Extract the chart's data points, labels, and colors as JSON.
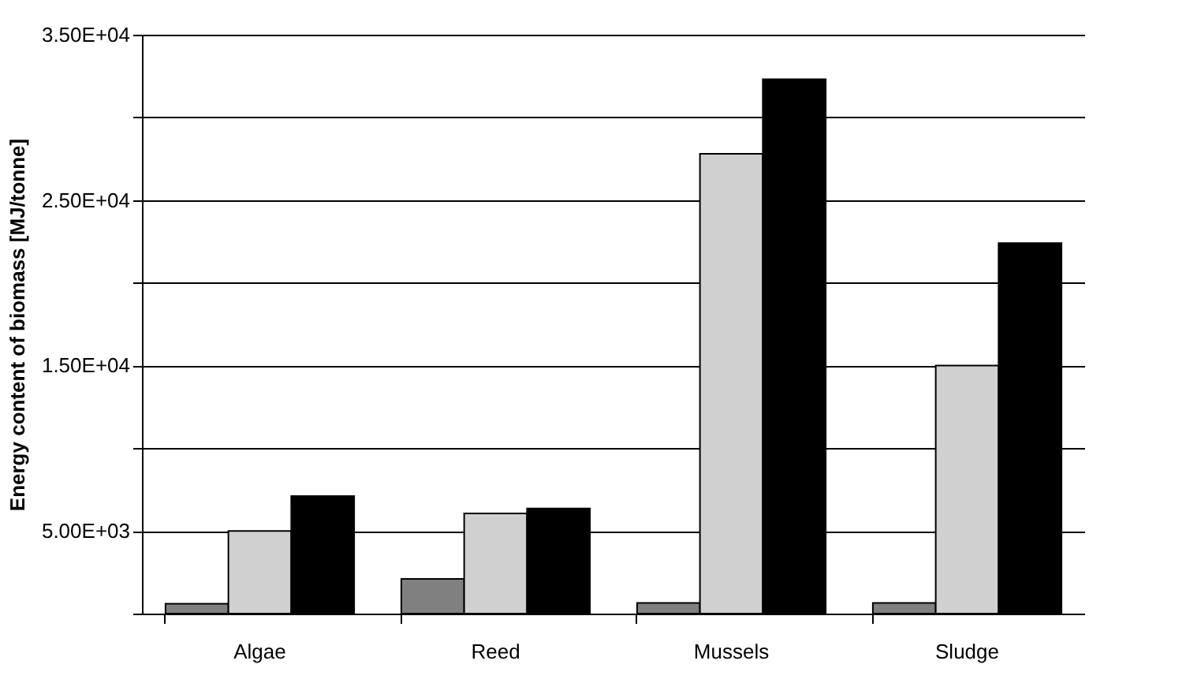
{
  "chart_data": {
    "type": "bar",
    "ylabel": "Energy content of biomass [MJ/tonne]",
    "categories": [
      "Algae",
      "Reed",
      "Mussels",
      "Sludge"
    ],
    "series": [
      {
        "color": "#808080",
        "values": [
          600,
          2100,
          640,
          640
        ]
      },
      {
        "color": "#d0d0d0",
        "values": [
          5000,
          6050,
          27800,
          15000
        ]
      },
      {
        "color": "#000000",
        "values": [
          7100,
          6350,
          32300,
          22400
        ]
      }
    ],
    "ylim": [
      0,
      35000
    ],
    "yticks": [
      {
        "value": 0,
        "label": null
      },
      {
        "value": 5000,
        "label": "5.00E+03"
      },
      {
        "value": 10000,
        "label": null
      },
      {
        "value": 15000,
        "label": "1.50E+04"
      },
      {
        "value": 20000,
        "label": null
      },
      {
        "value": 25000,
        "label": "2.50E+04"
      },
      {
        "value": 30000,
        "label": null
      },
      {
        "value": 35000,
        "label": "3.50E+04"
      }
    ],
    "grid": "y"
  }
}
